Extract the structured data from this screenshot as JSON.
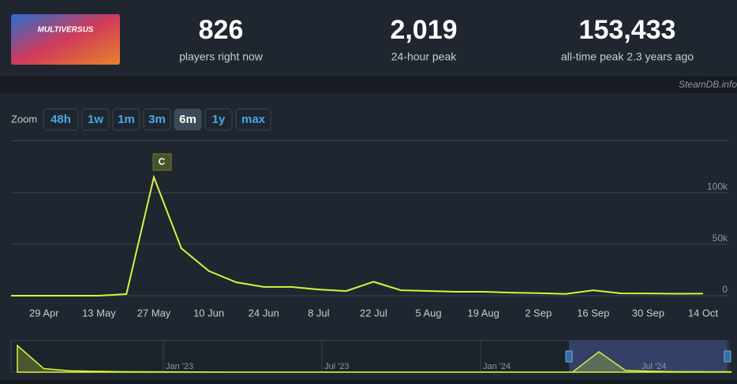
{
  "header": {
    "logo_text": "MULTIVERSUS",
    "stats": [
      {
        "value": "826",
        "label": "players right now"
      },
      {
        "value": "2,019",
        "label": "24-hour peak"
      },
      {
        "value": "153,433",
        "label": "all-time peak 2.3 years ago"
      }
    ],
    "watermark": "SteamDB.info"
  },
  "zoom": {
    "label": "Zoom",
    "buttons": [
      "48h",
      "1w",
      "1m",
      "3m",
      "6m",
      "1y",
      "max"
    ],
    "active": "6m"
  },
  "chart_data": [
    {
      "type": "line",
      "annotation": "C",
      "color": "#d4f53c",
      "categories": [
        null,
        "29 Apr",
        null,
        "13 May",
        null,
        "27 May",
        null,
        "10 Jun",
        null,
        "24 Jun",
        null,
        "8 Jul",
        null,
        "22 Jul",
        null,
        "5 Aug",
        null,
        "19 Aug",
        null,
        "2 Sep",
        null,
        "16 Sep",
        null,
        "30 Sep",
        null,
        "14 Oct"
      ],
      "values": [
        0,
        0,
        0,
        0,
        1500,
        115000,
        46000,
        24000,
        13000,
        8500,
        8500,
        6000,
        4500,
        13500,
        5300,
        4600,
        3800,
        3800,
        3000,
        2500,
        1700,
        5300,
        2300,
        2200,
        1900,
        2000
      ],
      "ylim": [
        0,
        150000
      ],
      "yticks": [
        0,
        {
          "value": 50000,
          "label": "50k"
        },
        {
          "value": 100000,
          "label": "100k"
        }
      ],
      "grid": true
    },
    {
      "type": "area",
      "color": "#d4f53c",
      "categories": [
        null,
        null,
        null,
        null,
        null,
        null,
        "Jan '23",
        null,
        null,
        null,
        null,
        null,
        "Jul '23",
        null,
        null,
        null,
        null,
        null,
        "Jan '24",
        null,
        null,
        null,
        null,
        null,
        "Jul '24",
        null,
        null,
        null
      ],
      "values": [
        150000,
        20000,
        8000,
        5000,
        3000,
        2000,
        1500,
        1000,
        800,
        700,
        600,
        500,
        500,
        400,
        400,
        300,
        300,
        300,
        300,
        300,
        300,
        300,
        115000,
        10000,
        5000,
        3000,
        2500,
        2000
      ],
      "ylim": [
        0,
        160000
      ]
    }
  ]
}
